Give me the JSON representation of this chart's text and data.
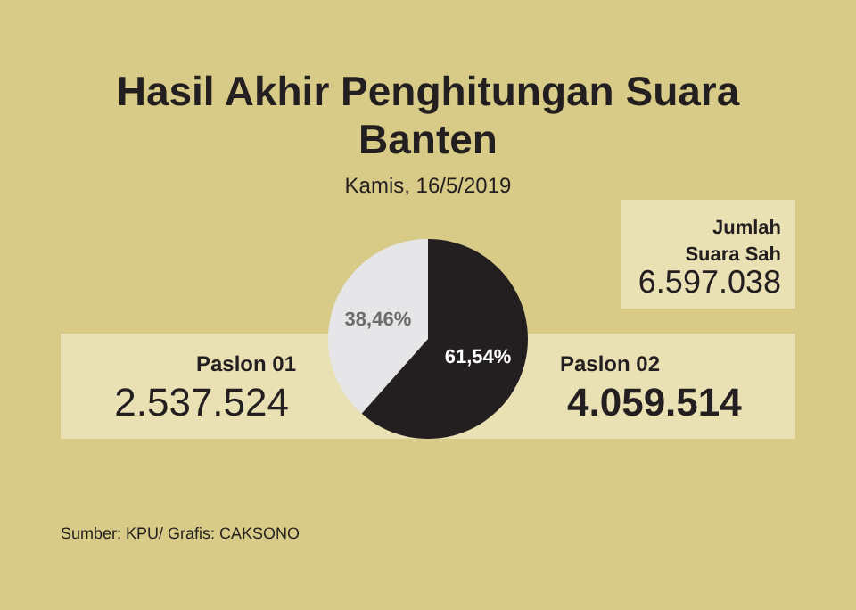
{
  "chart_data": {
    "type": "pie",
    "title": "Hasil Akhir Penghitungan Suara Banten",
    "subtitle": "Kamis, 16/5/2019",
    "categories": [
      "Paslon 01",
      "Paslon 02"
    ],
    "values": [
      38.46,
      61.54
    ],
    "colors": [
      "#e6e6e8",
      "#231f20"
    ],
    "value_labels": [
      "38,46%",
      "61,54%"
    ],
    "legend": false,
    "annotations": [
      "2.537.524",
      "4.059.514",
      "Jumlah Suara Sah",
      "6.597.038",
      "Sumber: KPU/ Grafis: CAKSONO"
    ]
  }
}
